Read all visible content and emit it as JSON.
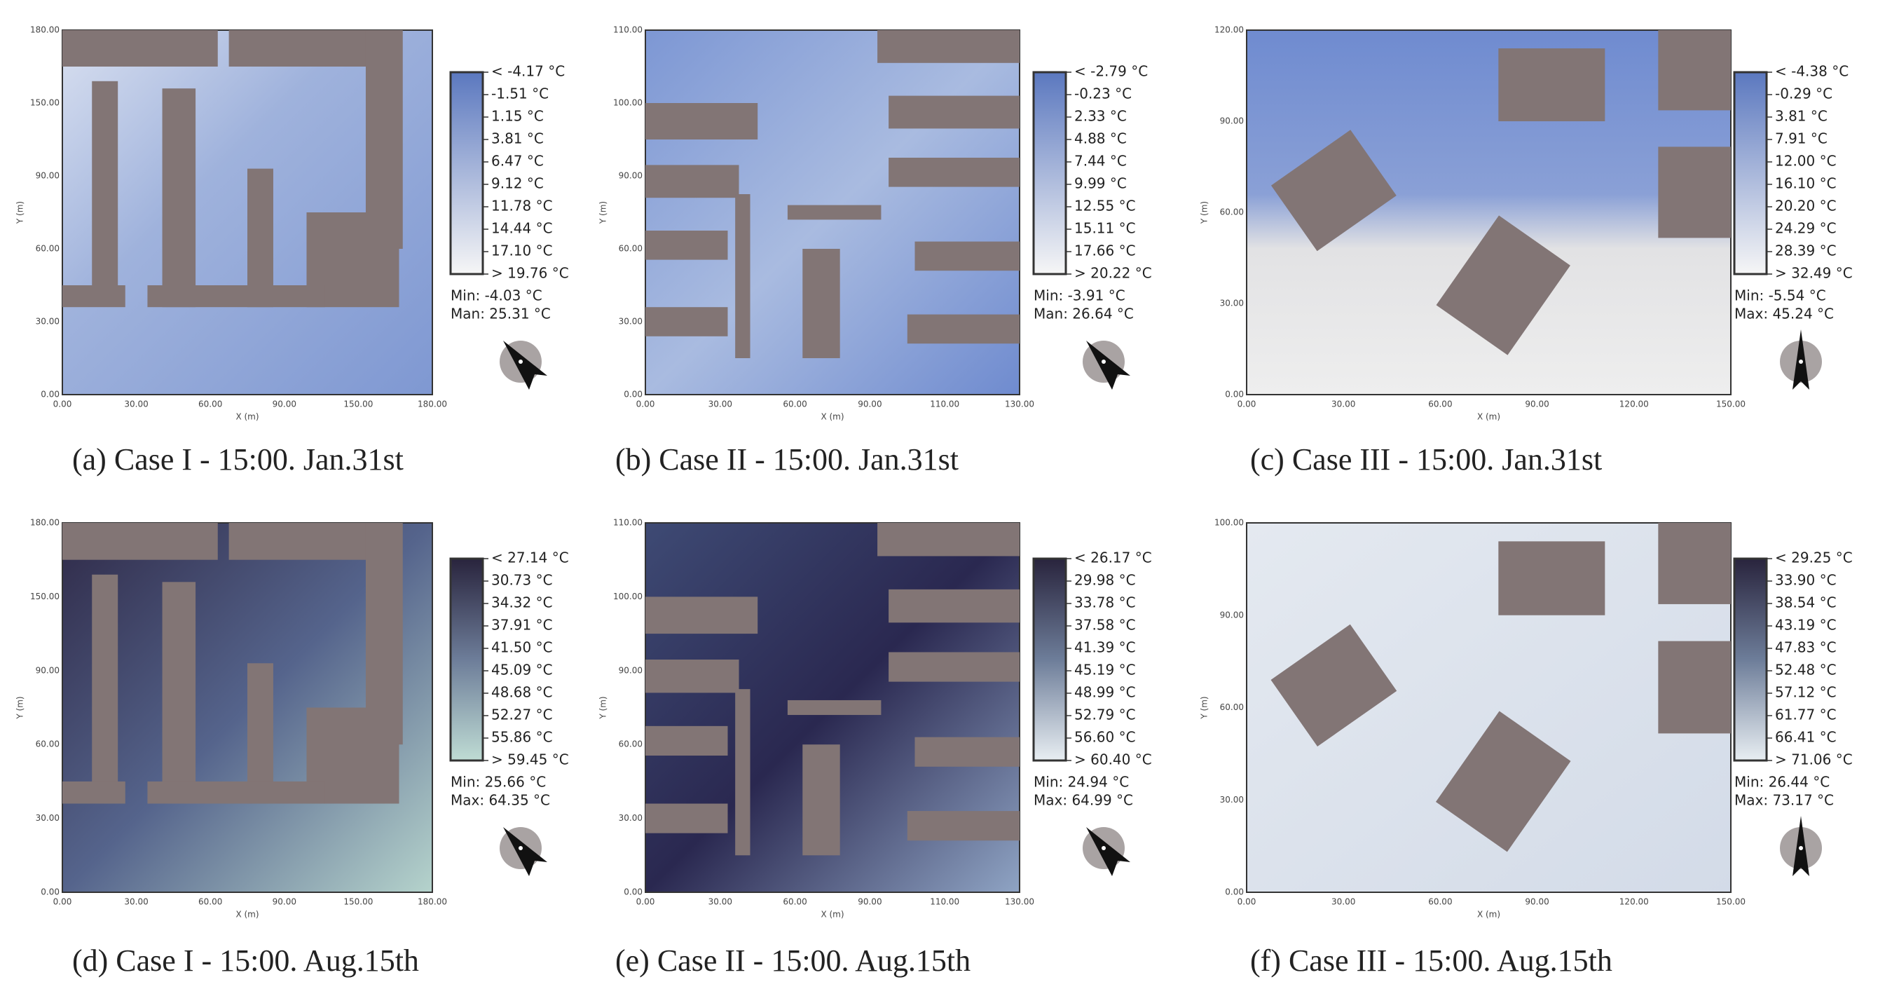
{
  "panels": [
    {
      "caption": "(a) Case I - 15:00. Jan.31st",
      "legend": [
        "< -4.17 °C",
        "-1.51 °C",
        "1.15 °C",
        "3.81 °C",
        "6.47 °C",
        "9.12 °C",
        "11.78 °C",
        "14.44 °C",
        "17.10 °C",
        "> 19.76 °C"
      ],
      "min": "Min: -4.03 °C",
      "max": "Man: 25.31 °C",
      "x_label": "X (m)",
      "y_label": "Y (m)",
      "xticks": [
        "0.00",
        "30.00",
        "60.00",
        "90.00",
        "150.00",
        "180.00"
      ],
      "yticks": [
        "0.00",
        "30.00",
        "60.00",
        "90.00",
        "150.00",
        "180.00"
      ]
    },
    {
      "caption": "(b) Case II - 15:00. Jan.31st",
      "legend": [
        "< -2.79 °C",
        "-0.23 °C",
        "2.33 °C",
        "4.88 °C",
        "7.44 °C",
        "9.99 °C",
        "12.55 °C",
        "15.11 °C",
        "17.66 °C",
        "> 20.22 °C"
      ],
      "min": "Min: -3.91 °C",
      "max": "Man: 26.64 °C",
      "x_label": "X (m)",
      "y_label": "Y (m)",
      "xticks": [
        "0.00",
        "30.00",
        "60.00",
        "90.00",
        "110.00",
        "130.00"
      ],
      "yticks": [
        "0.00",
        "30.00",
        "60.00",
        "90.00",
        "100.00",
        "110.00"
      ]
    },
    {
      "caption": "(c) Case III - 15:00. Jan.31st",
      "legend": [
        "< -4.38 °C",
        "-0.29 °C",
        "3.81 °C",
        "7.91 °C",
        "12.00 °C",
        "16.10 °C",
        "20.20 °C",
        "24.29 °C",
        "28.39 °C",
        "> 32.49 °C"
      ],
      "min": "Min: -5.54 °C",
      "max": "Max: 45.24 °C",
      "x_label": "X (m)",
      "y_label": "Y (m)",
      "xticks": [
        "0.00",
        "30.00",
        "60.00",
        "90.00",
        "120.00",
        "150.00"
      ],
      "yticks": [
        "0.00",
        "30.00",
        "60.00",
        "90.00",
        "120.00"
      ]
    },
    {
      "caption": "(d) Case I - 15:00. Aug.15th",
      "legend": [
        "< 27.14 °C",
        "30.73 °C",
        "34.32 °C",
        "37.91 °C",
        "41.50 °C",
        "45.09 °C",
        "48.68 °C",
        "52.27 °C",
        "55.86 °C",
        "> 59.45 °C"
      ],
      "min": "Min: 25.66 °C",
      "max": "Max: 64.35 °C",
      "x_label": "X (m)",
      "y_label": "Y (m)",
      "xticks": [
        "0.00",
        "30.00",
        "60.00",
        "90.00",
        "150.00",
        "180.00"
      ],
      "yticks": [
        "0.00",
        "30.00",
        "60.00",
        "90.00",
        "150.00",
        "180.00"
      ]
    },
    {
      "caption": "(e) Case II - 15:00. Aug.15th",
      "legend": [
        "< 26.17 °C",
        "29.98 °C",
        "33.78 °C",
        "37.58 °C",
        "41.39 °C",
        "45.19 °C",
        "48.99 °C",
        "52.79 °C",
        "56.60 °C",
        "> 60.40 °C"
      ],
      "min": "Min: 24.94 °C",
      "max": "Max: 64.99 °C",
      "x_label": "X (m)",
      "y_label": "Y (m)",
      "xticks": [
        "0.00",
        "30.00",
        "60.00",
        "90.00",
        "110.00",
        "130.00"
      ],
      "yticks": [
        "0.00",
        "30.00",
        "60.00",
        "90.00",
        "100.00",
        "110.00"
      ]
    },
    {
      "caption": "(f) Case III - 15:00. Aug.15th",
      "legend": [
        "< 29.25 °C",
        "33.90 °C",
        "38.54 °C",
        "43.19 °C",
        "47.83 °C",
        "52.48 °C",
        "57.12 °C",
        "61.77 °C",
        "66.41 °C",
        "> 71.06 °C"
      ],
      "min": "Min: 26.44 °C",
      "max": "Max: 73.17 °C",
      "x_label": "X (m)",
      "y_label": "Y (m)",
      "xticks": [
        "0.00",
        "30.00",
        "60.00",
        "90.00",
        "120.00",
        "150.00"
      ],
      "yticks": [
        "0.00",
        "30.00",
        "60.00",
        "90.00",
        "100.00"
      ]
    }
  ]
}
